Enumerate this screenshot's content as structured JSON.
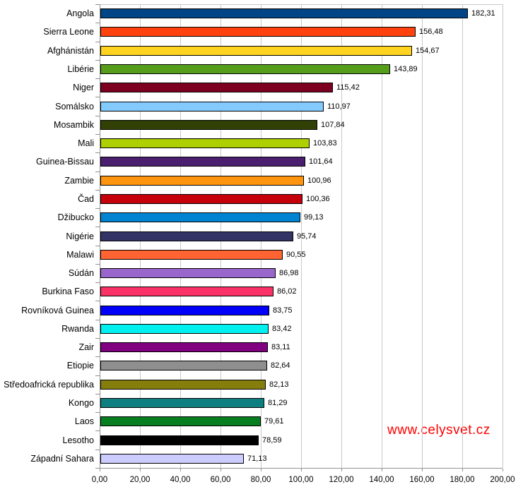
{
  "chart_data": {
    "type": "bar",
    "orientation": "horizontal",
    "title": "",
    "xlabel": "",
    "ylabel": "",
    "xlim": [
      0,
      200
    ],
    "grid": true,
    "background": "#FFFFFF",
    "categories": [
      "Angola",
      "Sierra Leone",
      "Afghánistán",
      "Libérie",
      "Niger",
      "Somálsko",
      "Mosambik",
      "Mali",
      "Guinea-Bissau",
      "Zambie",
      "Čad",
      "Džibucko",
      "Nigérie",
      "Malawi",
      "Súdán",
      "Burkina Faso",
      "Rovníková Guinea",
      "Rwanda",
      "Zair",
      "Etiopie",
      "Středoafrická republika",
      "Kongo",
      "Laos",
      "Lesotho",
      "Západní Sahara"
    ],
    "values": [
      182.31,
      156.48,
      154.67,
      143.89,
      115.42,
      110.97,
      107.84,
      103.83,
      101.64,
      100.96,
      100.36,
      99.13,
      95.74,
      90.55,
      86.98,
      86.02,
      83.75,
      83.42,
      83.11,
      82.64,
      82.13,
      81.29,
      79.61,
      78.59,
      71.13
    ],
    "value_labels": [
      "182,31",
      "156,48",
      "154,67",
      "143,89",
      "115,42",
      "110,97",
      "107,84",
      "103,83",
      "101,64",
      "100,96",
      "100,36",
      "99,13",
      "95,74",
      "90,55",
      "86,98",
      "86,02",
      "83,75",
      "83,42",
      "83,11",
      "82,64",
      "82,13",
      "81,29",
      "79,61",
      "78,59",
      "71,13"
    ],
    "bar_colors": [
      "#004586",
      "#FF420E",
      "#FFD320",
      "#579D1C",
      "#7E0021",
      "#83CAFF",
      "#314004",
      "#AECF00",
      "#4B1F6F",
      "#FF950E",
      "#C5000B",
      "#0084D1",
      "#333366",
      "#FF6432",
      "#9966CC",
      "#FB3265",
      "#0000FA",
      "#00F0F0",
      "#800080",
      "#8F8F8F",
      "#857D0C",
      "#0E7F80",
      "#077E20",
      "#000000",
      "#CCCCFF"
    ],
    "x_tick_values": [
      0,
      20,
      40,
      60,
      80,
      100,
      120,
      140,
      160,
      180,
      200
    ],
    "x_tick_labels": [
      "0,00",
      "20,00",
      "40,00",
      "60,00",
      "80,00",
      "100,00",
      "120,00",
      "140,00",
      "160,00",
      "180,00",
      "200,00"
    ],
    "axis_color": "#919191",
    "gridline_color": "#C9C9C9",
    "bar_border_color": "#000000",
    "label_color": "#000000"
  },
  "watermark": {
    "text": "www.celysvet.cz",
    "color": "#FF0000"
  }
}
